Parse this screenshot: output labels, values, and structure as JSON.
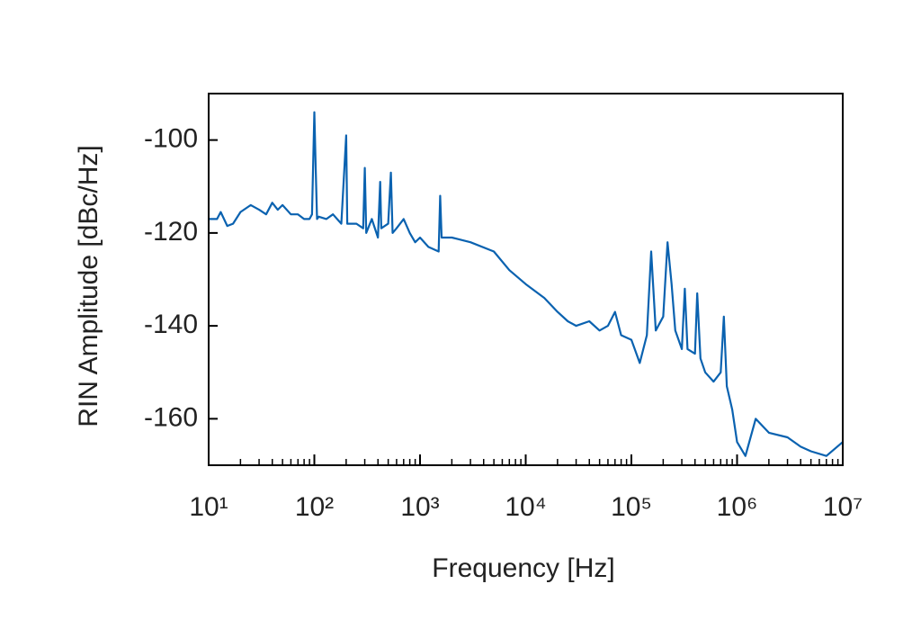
{
  "chart_data": {
    "type": "line",
    "x_label": "Frequency [Hz]",
    "y_label": "RIN Amplitude [dBc/Hz]",
    "xscale": "log",
    "color": "#0a62b0",
    "xlim": [
      10,
      10000000
    ],
    "ylim": [
      -170,
      -90
    ],
    "xticks": [
      {
        "value": 10,
        "label": "10¹"
      },
      {
        "value": 100,
        "label": "10²"
      },
      {
        "value": 1000,
        "label": "10³"
      },
      {
        "value": 10000,
        "label": "10⁴"
      },
      {
        "value": 100000,
        "label": "10⁵"
      },
      {
        "value": 1000000,
        "label": "10⁶"
      },
      {
        "value": 10000000,
        "label": "10⁷"
      }
    ],
    "yticks": [
      -100,
      -120,
      -140,
      -160
    ],
    "x": [
      10,
      12,
      13,
      15,
      17,
      20,
      25,
      30,
      35,
      40,
      45,
      50,
      60,
      70,
      80,
      90,
      95,
      100,
      103,
      106,
      110,
      130,
      150,
      180,
      200,
      205,
      250,
      290,
      300,
      310,
      350,
      400,
      420,
      430,
      500,
      530,
      550,
      600,
      700,
      800,
      900,
      1000,
      1200,
      1500,
      1550,
      1600,
      2000,
      3000,
      5000,
      7000,
      10000,
      15000,
      20000,
      25000,
      30000,
      40000,
      50000,
      60000,
      70000,
      80000,
      100000,
      120000,
      140000,
      154000,
      170000,
      200000,
      220000,
      240000,
      260000,
      300000,
      320000,
      340000,
      400000,
      420000,
      450000,
      500000,
      600000,
      700000,
      750000,
      800000,
      900000,
      1000000,
      1200000,
      1500000,
      2000000,
      3000000,
      4000000,
      5000000,
      7000000,
      10000000
    ],
    "values": [
      -117,
      -117,
      -115.5,
      -118.5,
      -118,
      -115.5,
      -114,
      -115,
      -116,
      -113.5,
      -115,
      -114,
      -116,
      -116,
      -117,
      -117,
      -116,
      -94,
      -106,
      -117,
      -116.5,
      -117,
      -116,
      -118,
      -99,
      -118,
      -118,
      -119,
      -106,
      -120,
      -117,
      -121,
      -109,
      -119,
      -118,
      -107,
      -120,
      -119,
      -117,
      -120,
      -122,
      -121,
      -123,
      -124,
      -112,
      -121,
      -121,
      -122,
      -124,
      -128,
      -131,
      -134,
      -137,
      -139,
      -140,
      -139,
      -141,
      -140,
      -137,
      -142,
      -143,
      -148,
      -142,
      -124,
      -141,
      -138,
      -122,
      -131,
      -141,
      -145,
      -132,
      -145,
      -146,
      -133,
      -147,
      -150,
      -152,
      -150,
      -138,
      -153,
      -158,
      -165,
      -168,
      -160,
      -163,
      -164,
      -166,
      -167,
      -168,
      -165
    ]
  }
}
